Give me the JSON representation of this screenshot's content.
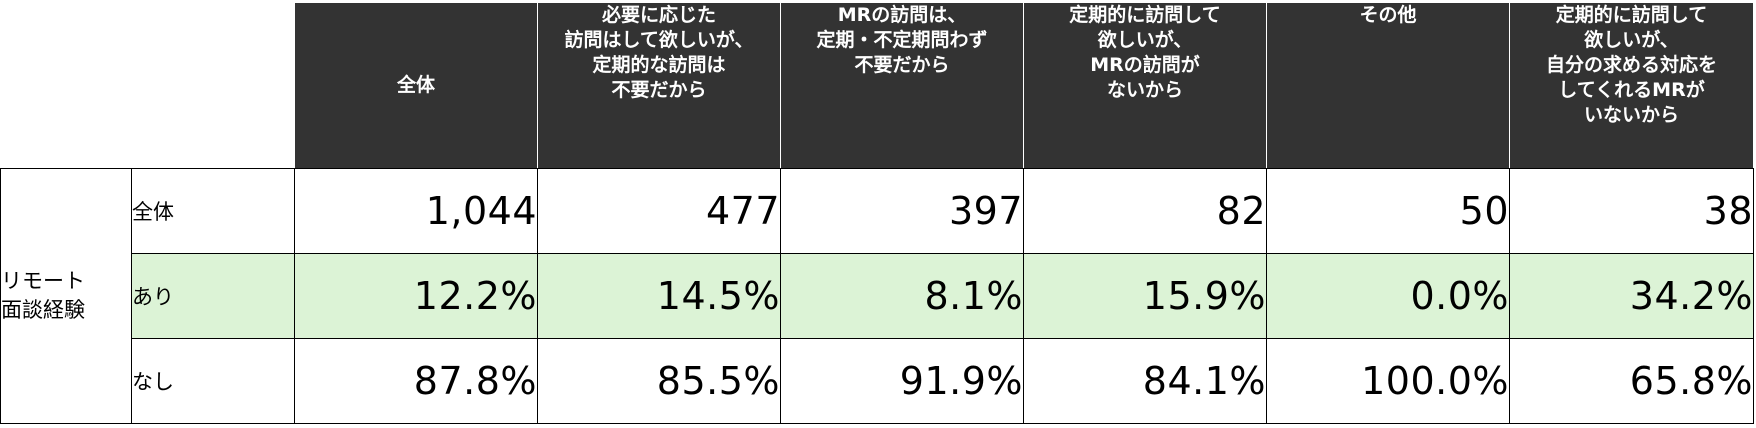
{
  "chart_data": {
    "type": "table",
    "columns": [
      "全体",
      "必要に応じた\n訪問はして欲しいが、\n定期的な訪問は\n不要だから",
      "MRの訪問は、\n定期・不定期問わず\n不要だから",
      "定期的に訪問して\n欲しいが、\nMRの訪問が\nないから",
      "その他",
      "定期的に訪問して\n欲しいが、\n自分の求める対応を\nしてくれるMRが\nいないから"
    ],
    "row_group": "リモート\n面談経験",
    "rows": [
      {
        "label": "全体",
        "values": [
          "1,044",
          "477",
          "397",
          "82",
          "50",
          "38"
        ],
        "highlight": false
      },
      {
        "label": "あり",
        "values": [
          "12.2%",
          "14.5%",
          "8.1%",
          "15.9%",
          "0.0%",
          "34.2%"
        ],
        "highlight": true
      },
      {
        "label": "なし",
        "values": [
          "87.8%",
          "85.5%",
          "91.9%",
          "84.1%",
          "100.0%",
          "65.8%"
        ],
        "highlight": false
      }
    ],
    "colors": {
      "header_bg": "#333333",
      "header_text": "#ffffff",
      "highlight_row": "#dcf3d6"
    }
  }
}
